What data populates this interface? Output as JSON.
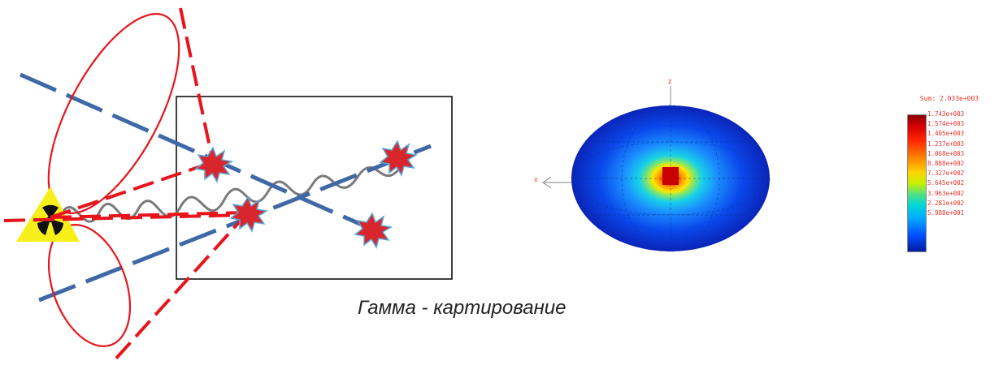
{
  "caption": "Гамма - картирование",
  "axis_labels": {
    "vertical": "z",
    "horizontal": "x"
  },
  "legend": {
    "title": "Sum: 2.033e+003",
    "values": [
      "1.743e+003",
      "1.574e+003",
      "1.405e+003",
      "1.237e+003",
      "1.068e+003",
      "8.888e+002",
      "7.327e+002",
      "5.645e+002",
      "3.963e+002",
      "2.281e+002",
      "5.988e+001"
    ]
  },
  "colors": {
    "cone_red": "#e8141c",
    "ray_blue": "#3e68a6",
    "star_fill": "#d9262c",
    "star_edge": "#5aa6d8",
    "warning_yellow": "#f6ef1a",
    "wave_gray": "#7a7a7a"
  },
  "icons": {
    "source": "radiation-trefoil-icon",
    "interaction": "star-burst-icon"
  }
}
